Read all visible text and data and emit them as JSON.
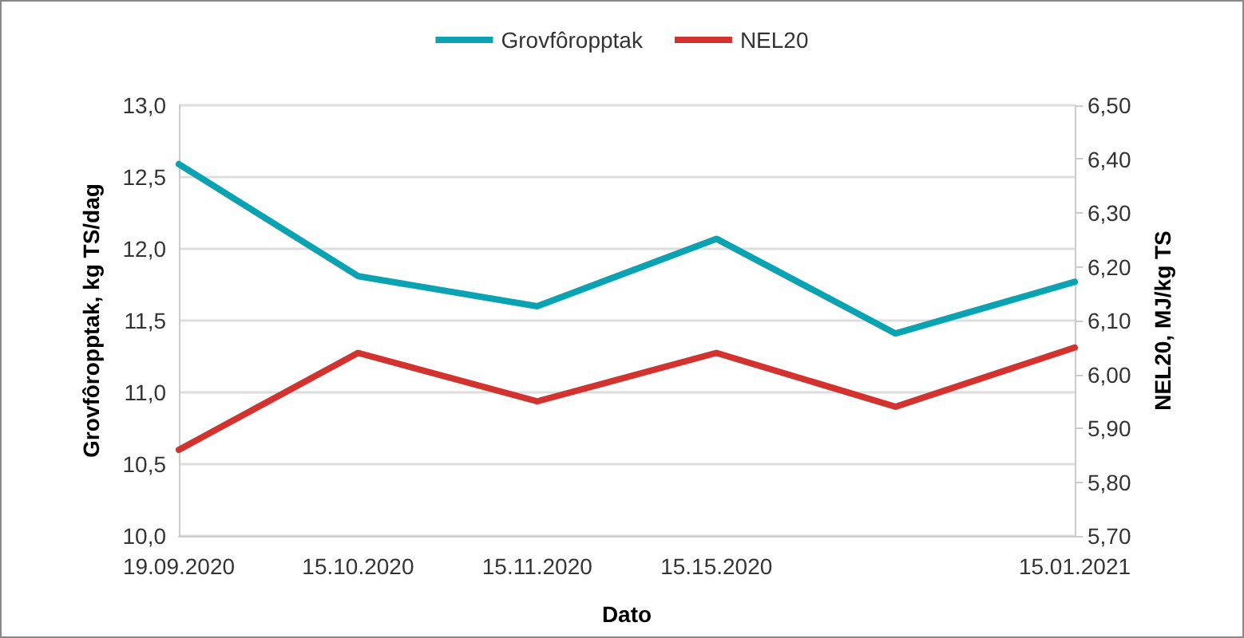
{
  "chart_data": {
    "type": "line",
    "xlabel": "Dato",
    "ylabel": "Grovfôropptak, kg TS/dag",
    "y2label": "NEL20, MJ/kg TS",
    "categories": [
      "19.09.2020",
      "15.10.2020",
      "15.11.2020",
      "15.15.2020",
      null,
      "15.01.2021"
    ],
    "series": [
      {
        "name": "Grovfôropptak",
        "color": "#0ba2b2",
        "values": [
          12.59,
          11.81,
          11.6,
          12.07,
          11.41,
          11.77
        ]
      },
      {
        "name": "NEL20",
        "color": "#d2332f",
        "axis": "y2",
        "values": [
          5.86,
          6.04,
          5.95,
          6.04,
          5.94,
          6.05
        ]
      }
    ],
    "ylim": [
      10,
      13
    ],
    "yticks": [
      {
        "value": 10,
        "label": "10,0"
      },
      {
        "value": 10.5,
        "label": "10,5"
      },
      {
        "value": 11,
        "label": "11,0"
      },
      {
        "value": 11.5,
        "label": "11,5"
      },
      {
        "value": 12,
        "label": "12,0"
      },
      {
        "value": 12.5,
        "label": "12,5"
      },
      {
        "value": 13,
        "label": "13,0"
      }
    ],
    "y2lim": [
      5.7,
      6.5
    ],
    "y2ticks": [
      {
        "value": 5.7,
        "label": "5,70"
      },
      {
        "value": 5.8,
        "label": "5,80"
      },
      {
        "value": 5.9,
        "label": "5,90"
      },
      {
        "value": 6,
        "label": "6,00"
      },
      {
        "value": 6.1,
        "label": "6,10"
      },
      {
        "value": 6.2,
        "label": "6,20"
      },
      {
        "value": 6.3,
        "label": "6,30"
      },
      {
        "value": 6.4,
        "label": "6,40"
      },
      {
        "value": 6.5,
        "label": "6,50"
      }
    ],
    "grid": "y",
    "legend": "top",
    "marker": "none",
    "line_style": "solid"
  }
}
